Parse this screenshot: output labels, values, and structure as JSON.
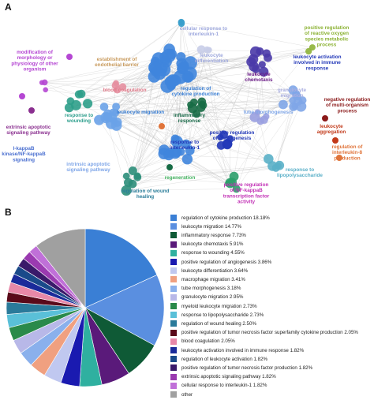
{
  "panel_a": {
    "letter": "A",
    "labels": [
      {
        "text": "modification of morphology or physiology of other organism",
        "color": "#b547d3"
      },
      {
        "text": "establishment of endothelial barrier",
        "color": "#c89a5c"
      },
      {
        "text": "cellular response to interleukin-1",
        "color": "#9fa9de"
      },
      {
        "text": "leukocyte differentiation",
        "color": "#9fa9de"
      },
      {
        "text": "positive regulation of reactive oxygen species metabolic process",
        "color": "#8db336"
      },
      {
        "text": "leukocyte activation involved in immune response",
        "color": "#2238b8"
      },
      {
        "text": "leukocyte chemotaxis",
        "color": "#6a1a86"
      },
      {
        "text": "blood coagulation",
        "color": "#e07a8a"
      },
      {
        "text": "regulation of cytokine production",
        "color": "#3a7fd5"
      },
      {
        "text": "granulocyte migration",
        "color": "#a9aee0"
      },
      {
        "text": "negative regulation of multi-organism process",
        "color": "#8b1a1a"
      },
      {
        "text": "response to wounding",
        "color": "#2c9e8c"
      },
      {
        "text": "leukocyte migration",
        "color": "#3a7fd5"
      },
      {
        "text": "inflammatory response",
        "color": "#1a6b4a"
      },
      {
        "text": "tube morphogenesis",
        "color": "#7fa6e8"
      },
      {
        "text": "leukocyte aggregation",
        "color": "#c23a1a"
      },
      {
        "text": "extrinsic apoptotic signaling pathway",
        "color": "#8a2f8f"
      },
      {
        "text": "positive regulation of angiogenesis",
        "color": "#2238b8"
      },
      {
        "text": "response to interleukin-1",
        "color": "#2238b8"
      },
      {
        "text": "regulation of interleukin-8 production",
        "color": "#e0743a"
      },
      {
        "text": "I-kappaB kinase/NF-kappaB signaling",
        "color": "#4a6fd0"
      },
      {
        "text": "intrinsic apoptotic signaling pathway",
        "color": "#7fa6e8"
      },
      {
        "text": "regulation of wound healing",
        "color": "#2c7e9a"
      },
      {
        "text": "regeneration",
        "color": "#4ab866"
      },
      {
        "text": "positive regulation of NF-kappaB transcription factor activity",
        "color": "#c232b5"
      },
      {
        "text": "response to lipopolysaccharide",
        "color": "#5ab0c8"
      }
    ]
  },
  "panel_b": {
    "letter": "B"
  },
  "chart_data": {
    "type": "pie",
    "title": "",
    "legend_position": "right",
    "slices": [
      {
        "label": "regulation of cytokine production 18.18%",
        "value": 18.18,
        "color": "#3a7fd5"
      },
      {
        "label": "leukocyte migration 14.77%",
        "value": 14.77,
        "color": "#5a8fe0"
      },
      {
        "label": "inflammatory response 7.73%",
        "value": 7.73,
        "color": "#0f5a36"
      },
      {
        "label": "leukocyte chemotaxis 5.91%",
        "value": 5.91,
        "color": "#5a1a7a"
      },
      {
        "label": "response to wounding 4.55%",
        "value": 4.55,
        "color": "#2fb0a0"
      },
      {
        "label": "positive regulation of angiogenesis 3.86%",
        "value": 3.86,
        "color": "#1a1ab0"
      },
      {
        "label": "leukocyte differentiation 3.64%",
        "value": 3.64,
        "color": "#c0c8f0"
      },
      {
        "label": "macrophage migration 3.41%",
        "value": 3.41,
        "color": "#f0a080"
      },
      {
        "label": "tube morphogenesis 3.18%",
        "value": 3.18,
        "color": "#8ab0ec"
      },
      {
        "label": "granulocyte migration 2.95%",
        "value": 2.95,
        "color": "#b8b8e8"
      },
      {
        "label": "myeloid leukocyte migration 2.73%",
        "value": 2.73,
        "color": "#2a8a4a"
      },
      {
        "label": "response to lipopolysaccharide 2.73%",
        "value": 2.73,
        "color": "#5ac0d8"
      },
      {
        "label": "regulation of wound healing 2.50%",
        "value": 2.5,
        "color": "#2a7a9a"
      },
      {
        "label": "positive regulation of tumor necrosis factor superfamily cytokine production 2.05%",
        "value": 2.05,
        "color": "#5a0a1a"
      },
      {
        "label": "blood coagulation 2.05%",
        "value": 2.05,
        "color": "#e888a8"
      },
      {
        "label": "leukocyte activation involved in immune response 1.82%",
        "value": 1.82,
        "color": "#1a2a9a"
      },
      {
        "label": "regulation of leukocyte activation 1.82%",
        "value": 1.82,
        "color": "#1a4a8a"
      },
      {
        "label": "positive regulation of tumor necrosis factor production 1.82%",
        "value": 1.82,
        "color": "#3a1a6a"
      },
      {
        "label": "extrinsic apoptotic signaling pathway 1.82%",
        "value": 1.82,
        "color": "#9a3ab0"
      },
      {
        "label": "cellular response to interleukin-1 1.82%",
        "value": 1.82,
        "color": "#c070d8"
      },
      {
        "label": "other",
        "value": 10.66,
        "color": "#a0a0a0"
      }
    ]
  }
}
